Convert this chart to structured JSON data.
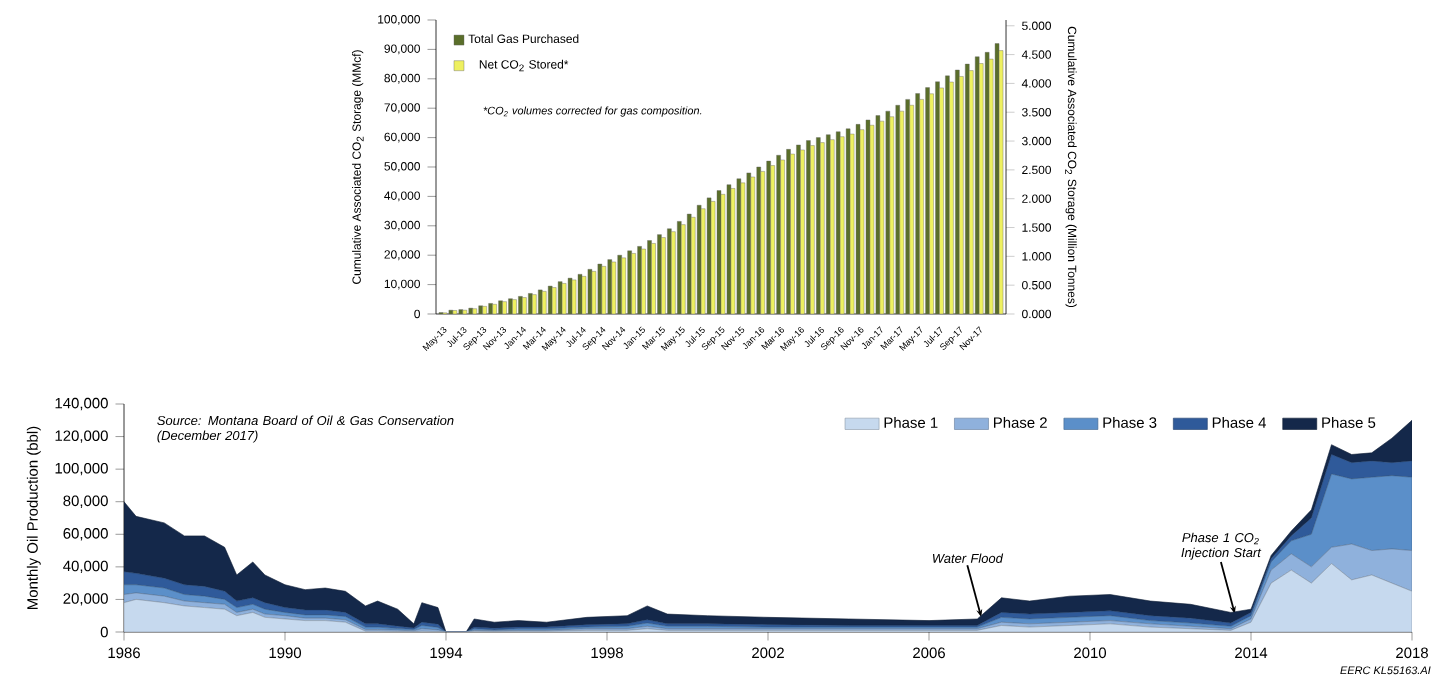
{
  "chart_data": [
    {
      "type": "bar",
      "ylabel": "Cumulative Associated CO$_{2}$ Storage (MMcf)",
      "y2label": "Cumulative Associated CO$_{2}$ Storage (Million Tonnes)",
      "categories": [
        "May-13",
        null,
        "Jul-13",
        null,
        "Sep-13",
        null,
        "Nov-13",
        null,
        "Jan-14",
        null,
        "Mar-14",
        null,
        "May-14",
        null,
        "Jul-14",
        null,
        "Sep-14",
        null,
        "Nov-14",
        null,
        "Jan-15",
        null,
        "Mar-15",
        null,
        "May-15",
        null,
        "Jul-15",
        null,
        "Sep-15",
        null,
        "Nov-15",
        null,
        "Jan-16",
        null,
        "Mar-16",
        null,
        "May-16",
        null,
        "Jul-16",
        null,
        "Sep-16",
        null,
        "Nov-16",
        null,
        "Jan-17",
        null,
        "Mar-17",
        null,
        "May-17",
        null,
        "Jul-17",
        null,
        "Sep-17",
        null,
        "Nov-17",
        null,
        null
      ],
      "series": [
        {
          "name": "Total Gas Purchased",
          "color": "#5a6e2a",
          "values": [
            500,
            1300,
            1500,
            2000,
            2800,
            3600,
            4500,
            5200,
            6000,
            7000,
            8200,
            9500,
            11000,
            12200,
            13500,
            15200,
            17000,
            18500,
            20000,
            21500,
            23000,
            25000,
            27000,
            29000,
            31500,
            34000,
            37000,
            39500,
            42000,
            44000,
            46000,
            48000,
            50000,
            52000,
            54000,
            56000,
            57500,
            59000,
            60000,
            61000,
            62000,
            63000,
            64500,
            66000,
            67500,
            69000,
            71000,
            73000,
            75000,
            77000,
            79000,
            81000,
            83000,
            85000,
            87500,
            89000,
            92000
          ]
        },
        {
          "name": "Net CO$_{2}$ Stored*",
          "color": "#eef060",
          "values": [
            400,
            1200,
            1300,
            1800,
            2600,
            3300,
            4200,
            4900,
            5600,
            6600,
            7700,
            9000,
            10400,
            11600,
            12800,
            14500,
            16200,
            17700,
            19100,
            20600,
            22100,
            24000,
            26000,
            28000,
            30400,
            32900,
            35800,
            38300,
            40700,
            42700,
            44600,
            46600,
            48500,
            50500,
            52400,
            54400,
            55800,
            57300,
            58300,
            59300,
            60300,
            61200,
            62700,
            64200,
            65600,
            67100,
            69000,
            71000,
            73000,
            74900,
            76900,
            78900,
            80800,
            82800,
            85200,
            86700,
            89600
          ]
        }
      ],
      "ylim": [
        0,
        100000
      ],
      "yticks": [
        0,
        {
          "value": 10000,
          "label": "10,000"
        },
        {
          "value": 20000,
          "label": "20,000"
        },
        {
          "value": 30000,
          "label": "30,000"
        },
        {
          "value": 40000,
          "label": "40,000"
        },
        {
          "value": 50000,
          "label": "50,000"
        },
        {
          "value": 60000,
          "label": "60,000"
        },
        {
          "value": 70000,
          "label": "70,000"
        },
        {
          "value": 80000,
          "label": "80,000"
        },
        {
          "value": 90000,
          "label": "90,000"
        },
        {
          "value": 100000,
          "label": "100,000"
        }
      ],
      "y2lim": [
        0,
        5.1
      ],
      "y2ticks": [
        {
          "value": 0,
          "label": "0.000"
        },
        {
          "value": 0.5,
          "label": "0.500"
        },
        {
          "value": 1,
          "label": "1.000"
        },
        {
          "value": 1.5,
          "label": "1.500"
        },
        {
          "value": 2,
          "label": "2.000"
        },
        {
          "value": 2.5,
          "label": "2.500"
        },
        {
          "value": 3,
          "label": "3.000"
        },
        {
          "value": 3.5,
          "label": "3.500"
        },
        {
          "value": 4,
          "label": "4.000"
        },
        {
          "value": 4.5,
          "label": "4.500"
        },
        {
          "value": 5,
          "label": "5.000"
        }
      ],
      "legend": "top left",
      "annotations": [
        "*CO$_{2}$ volumes corrected for gas composition."
      ]
    },
    {
      "type": "area",
      "stacked": true,
      "ylabel": "Monthly Oil Production (bbl)",
      "x": [
        1986.0,
        1986.3,
        1987.0,
        1987.5,
        1988.0,
        1988.5,
        1988.8,
        1989.2,
        1989.5,
        1990.0,
        1990.5,
        1991.0,
        1991.5,
        1992.0,
        1992.3,
        1992.8,
        1993.2,
        1993.4,
        1993.8,
        1994.0,
        1994.5,
        1994.7,
        1995.2,
        1995.8,
        1996.5,
        1997.5,
        1998.5,
        1999.0,
        1999.5,
        2000.5,
        2002.0,
        2004.0,
        2006.0,
        2007.2,
        2007.8,
        2008.5,
        2009.5,
        2010.5,
        2011.5,
        2012.5,
        2013.5,
        2014.0,
        2014.5,
        2015.0,
        2015.5,
        2016.0,
        2016.5,
        2017.0,
        2017.5,
        2018.0
      ],
      "series": [
        {
          "name": "Phase 1",
          "color": "#c6d9ee",
          "values": [
            18000,
            20000,
            18000,
            16000,
            15000,
            14000,
            10000,
            12000,
            9000,
            8000,
            7000,
            7000,
            6000,
            500,
            500,
            300,
            200,
            500,
            300,
            0,
            0,
            500,
            300,
            500,
            500,
            1000,
            1000,
            2000,
            1000,
            1000,
            1000,
            1000,
            1000,
            1000,
            4000,
            3000,
            4000,
            5000,
            3000,
            2000,
            1000,
            6000,
            30000,
            38000,
            30000,
            42000,
            32000,
            35000,
            30000,
            25000
          ]
        },
        {
          "name": "Phase 2",
          "color": "#8fb1dc",
          "values": [
            5000,
            4000,
            4000,
            3000,
            3000,
            3000,
            2000,
            2000,
            2000,
            2000,
            1500,
            1500,
            1500,
            1000,
            1000,
            800,
            500,
            1500,
            1000,
            0,
            0,
            500,
            500,
            500,
            500,
            1000,
            1000,
            1500,
            1000,
            1000,
            1000,
            1000,
            1000,
            1000,
            2000,
            2000,
            2000,
            2000,
            2000,
            1500,
            1000,
            2000,
            8000,
            10000,
            10000,
            10000,
            22000,
            15000,
            21000,
            25000
          ]
        },
        {
          "name": "Phase 3",
          "color": "#5b8fc9",
          "values": [
            6000,
            5000,
            5000,
            4000,
            4000,
            3000,
            3000,
            3000,
            3000,
            2000,
            2000,
            2000,
            2000,
            1500,
            1500,
            1000,
            800,
            2000,
            1500,
            0,
            0,
            1000,
            500,
            1000,
            1000,
            1000,
            1500,
            2000,
            1500,
            1500,
            1000,
            1000,
            1000,
            1000,
            3000,
            3000,
            3000,
            3000,
            2000,
            2000,
            1500,
            2000,
            5000,
            8000,
            20000,
            45000,
            40000,
            45000,
            45000,
            45000
          ]
        },
        {
          "name": "Phase 4",
          "color": "#2f5a9a",
          "values": [
            8000,
            7000,
            6000,
            6000,
            6000,
            5000,
            4000,
            4000,
            4000,
            3000,
            3000,
            3000,
            2500,
            2000,
            2000,
            1500,
            1000,
            2000,
            2000,
            0,
            0,
            1000,
            1000,
            1000,
            1000,
            1500,
            1500,
            2000,
            1500,
            1500,
            1500,
            1000,
            1000,
            1000,
            3000,
            3000,
            3000,
            3000,
            3000,
            3000,
            2000,
            2000,
            2000,
            3000,
            10000,
            12000,
            10000,
            10000,
            8000,
            10000
          ]
        },
        {
          "name": "Phase 5",
          "color": "#14284a",
          "values": [
            43000,
            35000,
            34000,
            30000,
            31000,
            27000,
            16000,
            22000,
            17000,
            14000,
            12500,
            13500,
            13000,
            11000,
            14000,
            10400,
            2500,
            12000,
            10200,
            0,
            0,
            5000,
            3700,
            4000,
            3000,
            4500,
            5000,
            8500,
            6000,
            5000,
            4500,
            4000,
            3000,
            4000,
            9000,
            8000,
            10000,
            10000,
            9000,
            8500,
            6500,
            2000,
            2000,
            3000,
            5000,
            6000,
            5000,
            5000,
            15000,
            25000
          ]
        }
      ],
      "xlim": [
        1986,
        2018
      ],
      "xticks": [
        1986,
        1990,
        1994,
        1998,
        2002,
        2006,
        2010,
        2014,
        2018
      ],
      "ylim": [
        0,
        140000
      ],
      "yticks": [
        0,
        {
          "value": 20000,
          "label": "20,000"
        },
        {
          "value": 40000,
          "label": "40,000"
        },
        {
          "value": 60000,
          "label": "60,000"
        },
        {
          "value": 80000,
          "label": "80,000"
        },
        {
          "value": 100000,
          "label": "100,000"
        },
        {
          "value": 120000,
          "label": "120,000"
        },
        {
          "value": 140000,
          "label": "140,000"
        }
      ],
      "legend": "top right",
      "annotations": [
        "Source: Montana Board of Oil & Gas Conservation (December 2017)",
        {
          "text": "Water Flood",
          "x": 2007.3,
          "y": 9000
        },
        {
          "text": "Phase 1 CO$_{2}$ Injection Start",
          "x": 2013.6,
          "y": 11000
        },
        "EERC KL55163.AI"
      ]
    }
  ]
}
